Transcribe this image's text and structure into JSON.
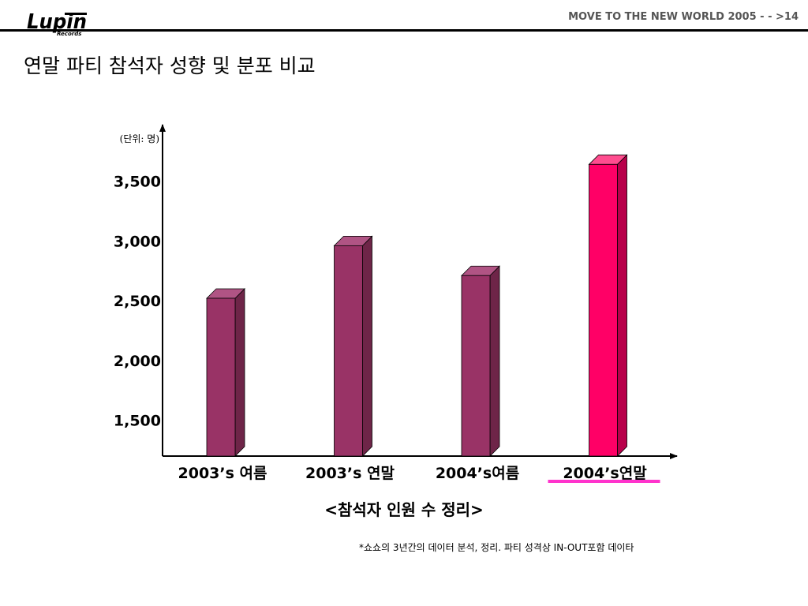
{
  "header": {
    "logo_text": "Lupin",
    "logo_subtext": "Records",
    "right_text": "MOVE TO THE NEW WORLD 2005 - - >14"
  },
  "page_title": "연말 파티 참석자 성향 및 분포 비교",
  "chart_data": {
    "type": "bar",
    "unit_label": "(단위: 명)",
    "categories": [
      "2003’s 여름",
      "2003’s 연말",
      "2004’s여름",
      "2004’s연말"
    ],
    "values": [
      2520,
      2960,
      2710,
      3640
    ],
    "highlight_index": 3,
    "y_ticks": [
      1500,
      2000,
      2500,
      3000,
      3500
    ],
    "y_tick_labels": [
      "1,500",
      "2,000",
      "2,500",
      "3,000",
      "3,500"
    ],
    "ylim": [
      1200,
      3860
    ],
    "colors": {
      "bar": "#993366",
      "bar_top": "#b05484",
      "bar_side": "#6e2548",
      "highlight": "#ff0066",
      "highlight_top": "#ff4d8f",
      "highlight_side": "#b8004a",
      "underline": "#ff33cc"
    }
  },
  "caption": "<참석자 인원 수 정리>",
  "footnote": "*쇼쇼의 3년간의 데이터 분석, 정리. 파티 성격상 IN-OUT포함 데이타"
}
